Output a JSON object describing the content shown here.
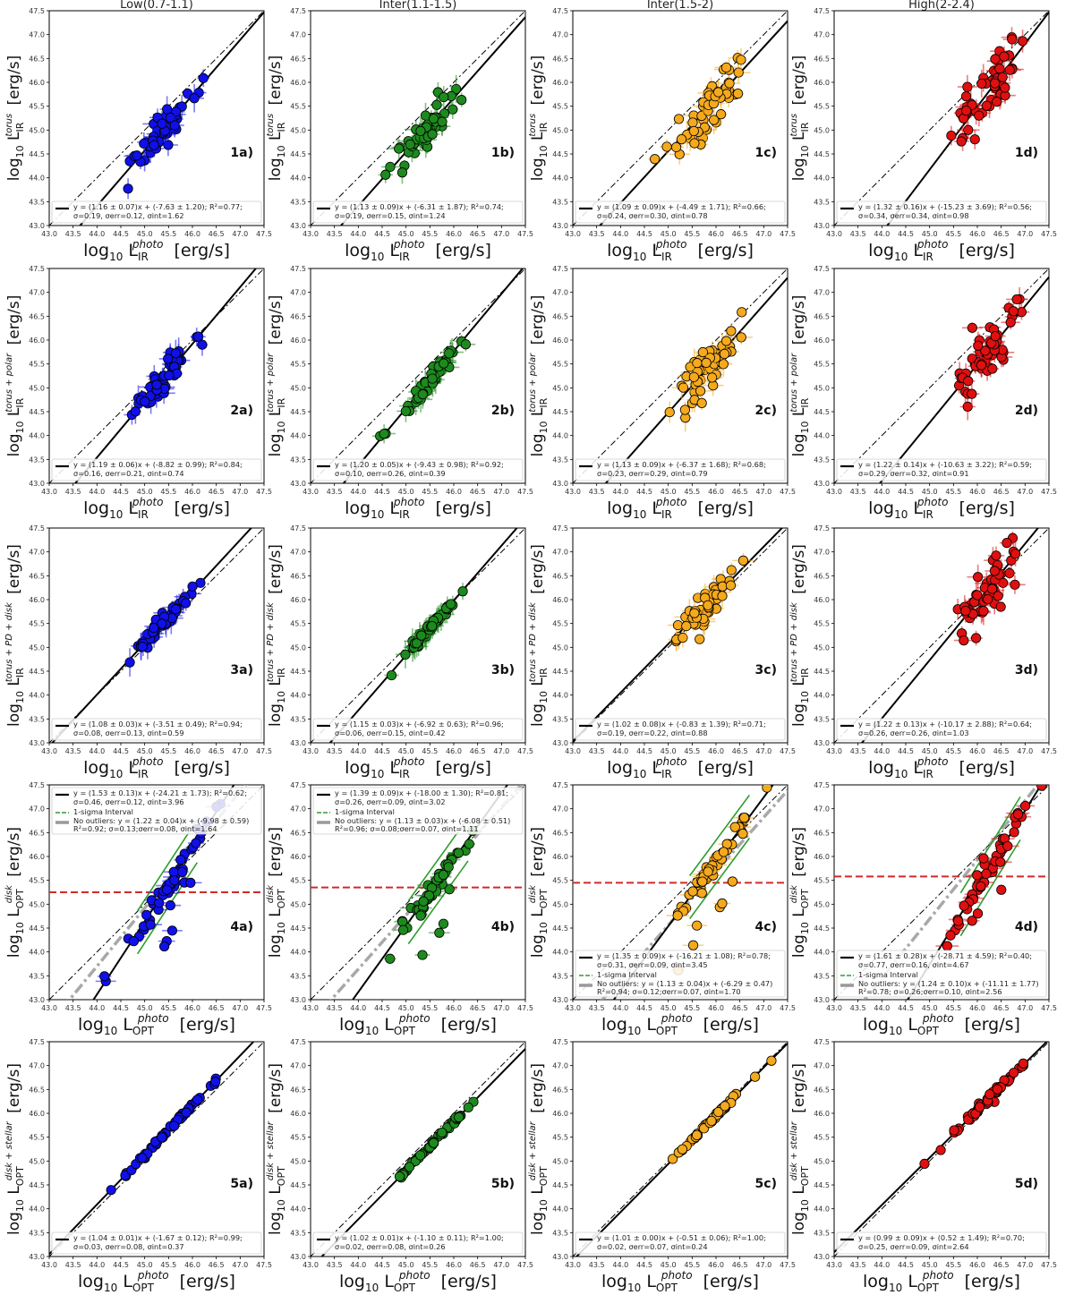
{
  "chart_data": {
    "type": "scatter",
    "axis_range": {
      "xlim": [
        43.0,
        47.5
      ],
      "ylim": [
        43.0,
        47.5
      ]
    },
    "ticks": [
      "43.0",
      "43.5",
      "44.0",
      "44.5",
      "45.0",
      "45.5",
      "46.0",
      "46.5",
      "47.0",
      "47.5"
    ],
    "column_titles": [
      "Low(0.7-1.1)",
      "Inter(1.1-1.5)",
      "Inter(1.5-2)",
      "High(2-2.4)"
    ],
    "column_colors": [
      "#1010e8",
      "#1d8a1d",
      "#f5a91c",
      "#e01010"
    ],
    "rows": [
      {
        "x_label": "log10 L_IR^photo [erg/s]",
        "y_label": "log10 L_IR^torus [erg/s]",
        "x_main": "L",
        "x_sub": "IR",
        "x_sup": "photo",
        "y_main": "L",
        "y_sub": "IR",
        "y_sup": "torus",
        "panels": [
          {
            "label": "1a)",
            "fit": {
              "slope": 1.16,
              "intercept": -7.63
            },
            "fit_line": "y = (1.16 ± 0.07)x + (-7.63 ± 1.20); R²=0.77;",
            "stats_line": "σ=0.19, σerr=0.12, σint=1.62",
            "cx": 45.35,
            "cy": 45.0,
            "sx": 0.35,
            "scatter": 0.18
          },
          {
            "label": "1b)",
            "fit": {
              "slope": 1.13,
              "intercept": -6.31
            },
            "fit_line": "y = (1.13 ± 0.09)x + (-6.31 ± 1.87); R²=0.74;",
            "stats_line": "σ=0.19, σerr=0.15, σint=1.24",
            "cx": 45.5,
            "cy": 45.2,
            "sx": 0.3,
            "scatter": 0.18
          },
          {
            "label": "1c)",
            "fit": {
              "slope": 1.09,
              "intercept": -4.49
            },
            "fit_line": "y = (1.09 ± 0.09)x + (-4.49 ± 1.71); R²=0.66;",
            "stats_line": "σ=0.24, σerr=0.30, σint=0.78",
            "cx": 45.8,
            "cy": 45.5,
            "sx": 0.35,
            "scatter": 0.26
          },
          {
            "label": "1d)",
            "fit": {
              "slope": 1.32,
              "intercept": -15.23
            },
            "fit_line": "y = (1.32 ± 0.16)x + (-15.23 ± 3.69); R²=0.56;",
            "stats_line": "σ=0.34, σerr=0.34, σint=0.98",
            "cx": 46.2,
            "cy": 45.8,
            "sx": 0.35,
            "scatter": 0.32
          }
        ]
      },
      {
        "x_label": "log10 L_IR^photo [erg/s]",
        "y_label": "log10 L_IR^torus+polar [erg/s]",
        "x_main": "L",
        "x_sub": "IR",
        "x_sup": "photo",
        "y_main": "L",
        "y_sub": "IR",
        "y_sup": "torus + polar",
        "panels": [
          {
            "label": "2a)",
            "fit": {
              "slope": 1.19,
              "intercept": -8.82
            },
            "fit_line": "y = (1.19 ± 0.06)x + (-8.82 ± 0.99); R²=0.84;",
            "stats_line": "σ=0.16, σerr=0.21, σint=0.74",
            "cx": 45.35,
            "cy": 45.15,
            "sx": 0.35,
            "scatter": 0.15
          },
          {
            "label": "2b)",
            "fit": {
              "slope": 1.2,
              "intercept": -9.43
            },
            "fit_line": "y = (1.20 ± 0.05)x + (-9.43 ± 0.98); R²=0.92;",
            "stats_line": "σ=0.10, σerr=0.26, σint=0.39",
            "cx": 45.5,
            "cy": 45.3,
            "sx": 0.3,
            "scatter": 0.1
          },
          {
            "label": "2c)",
            "fit": {
              "slope": 1.13,
              "intercept": -6.37
            },
            "fit_line": "y = (1.13 ± 0.09)x + (-6.37 ± 1.68); R²=0.68;",
            "stats_line": "σ=0.23, σerr=0.29, σint=0.79",
            "cx": 45.8,
            "cy": 45.6,
            "sx": 0.35,
            "scatter": 0.24
          },
          {
            "label": "2d)",
            "fit": {
              "slope": 1.22,
              "intercept": -10.63
            },
            "fit_line": "y = (1.22 ± 0.14)x + (-10.63 ± 3.22); R²=0.59;",
            "stats_line": "σ=0.29, σerr=0.32, σint=0.91",
            "cx": 46.2,
            "cy": 45.9,
            "sx": 0.35,
            "scatter": 0.28
          }
        ]
      },
      {
        "x_label": "log10 L_IR^photo [erg/s]",
        "y_label": "log10 L_IR^torus+PD+disk [erg/s]",
        "x_main": "L",
        "x_sub": "IR",
        "x_sup": "photo",
        "y_main": "L",
        "y_sub": "IR",
        "y_sup": "torus + PD + disk",
        "panels": [
          {
            "label": "3a)",
            "fit": {
              "slope": 1.08,
              "intercept": -3.51
            },
            "fit_line": "y = (1.08 ± 0.03)x + (-3.51 ± 0.49); R²=0.94;",
            "stats_line": "σ=0.08, σerr=0.13, σint=0.59",
            "cx": 45.35,
            "cy": 45.3,
            "sx": 0.35,
            "scatter": 0.08
          },
          {
            "label": "3b)",
            "fit": {
              "slope": 1.15,
              "intercept": -6.92
            },
            "fit_line": "y = (1.15 ± 0.03)x + (-6.92 ± 0.63); R²=0.96;",
            "stats_line": "σ=0.06, σerr=0.15, σint=0.42",
            "cx": 45.5,
            "cy": 45.4,
            "sx": 0.3,
            "scatter": 0.06
          },
          {
            "label": "3c)",
            "fit": {
              "slope": 1.02,
              "intercept": -0.83
            },
            "fit_line": "y = (1.02 ± 0.08)x + (-0.83 ± 1.39); R²=0.71;",
            "stats_line": "σ=0.19, σerr=0.22, σint=0.88",
            "cx": 45.8,
            "cy": 45.7,
            "sx": 0.35,
            "scatter": 0.2
          },
          {
            "label": "3d)",
            "fit": {
              "slope": 1.22,
              "intercept": -10.17
            },
            "fit_line": "y = (1.22 ± 0.13)x + (-10.17 ± 2.88); R²=0.64;",
            "stats_line": "σ=0.26, σerr=0.26, σint=1.03",
            "cx": 46.2,
            "cy": 46.0,
            "sx": 0.35,
            "scatter": 0.25
          }
        ]
      },
      {
        "x_label": "log10 L_OPT^photo [erg/s]",
        "y_label": "log10 L_OPT^disk [erg/s]",
        "x_main": "L",
        "x_sub": "OPT",
        "x_sup": "photo",
        "y_main": "L",
        "y_sub": "OPT",
        "y_sup": "disk",
        "panels": [
          {
            "label": "4a)",
            "fit": {
              "slope": 1.53,
              "intercept": -24.21
            },
            "fit_line": "y = (1.53 ± 0.13)x + (-24.21 ± 1.73); R²=0.62;",
            "stats_line": "σ=0.46, σerr=0.12, σint=3.96",
            "interval_label": "1-sigma Interval",
            "nooutlier_fit": {
              "slope": 1.22,
              "intercept": -9.98
            },
            "nooutlier_line": "No outliers: y = (1.22 ± 0.04)x + (-9.98 ± 0.59)",
            "nooutlier_stats": "R²=0.92; σ=0.13;σerr=0.08, σint=1.64",
            "threshold": 45.25,
            "legend_pos": "top",
            "cx": 45.4,
            "cy": 45.3,
            "sx": 0.45,
            "scatter": 0.12
          },
          {
            "label": "4b)",
            "fit": {
              "slope": 1.39,
              "intercept": -18.0
            },
            "fit_line": "y = (1.39 ± 0.09)x + (-18.00 ± 1.30); R²=0.81;",
            "stats_line": "σ=0.26, σerr=0.09, σint=3.02",
            "interval_label": "1-sigma Interval",
            "nooutlier_fit": {
              "slope": 1.13,
              "intercept": -6.08
            },
            "nooutlier_line": "No outliers: y = (1.13 ± 0.03)x + (-6.08 ± 0.51)",
            "nooutlier_stats": "R²=0.96; σ=0.08;σerr=0.07, σint=1.11",
            "threshold": 45.35,
            "legend_pos": "top",
            "cx": 45.6,
            "cy": 45.5,
            "sx": 0.35,
            "scatter": 0.1
          },
          {
            "label": "4c)",
            "fit": {
              "slope": 1.35,
              "intercept": -16.21
            },
            "fit_line": "y = (1.35 ± 0.09)x + (-16.21 ± 1.08); R²=0.78;",
            "stats_line": "σ=0.31, σerr=0.09, σint=3.45",
            "interval_label": "1-sigma Interval",
            "nooutlier_fit": {
              "slope": 1.13,
              "intercept": -6.29
            },
            "nooutlier_line": "No outliers: y = (1.13 ± 0.04)x + (-6.29 ± 0.47)",
            "nooutlier_stats": "R²=0.94; σ=0.12;σerr=0.07, σint=1.70",
            "threshold": 45.45,
            "legend_pos": "bottom",
            "cx": 46.0,
            "cy": 46.1,
            "sx": 0.4,
            "scatter": 0.1
          },
          {
            "label": "4d)",
            "fit": {
              "slope": 1.61,
              "intercept": -28.71
            },
            "fit_line": "y = (1.61 ± 0.28)x + (-28.71 ± 4.59); R²=0.40;",
            "stats_line": "σ=0.77, σerr=0.16, σint=4.67",
            "interval_label": "1-sigma Interval",
            "nooutlier_fit": {
              "slope": 1.24,
              "intercept": -11.11
            },
            "nooutlier_line": "No outliers: y = (1.24 ± 0.10)x + (-11.11 ± 1.77)",
            "nooutlier_stats": "R²=0.78; σ=0.26;σerr=0.10, σint=2.56",
            "threshold": 45.58,
            "legend_pos": "bottom",
            "cx": 46.2,
            "cy": 46.0,
            "sx": 0.4,
            "scatter": 0.12
          }
        ]
      },
      {
        "x_label": "log10 L_OPT^photo [erg/s]",
        "y_label": "log10 L_OPT^disk+stellar [erg/s]",
        "x_main": "L",
        "x_sub": "OPT",
        "x_sup": "photo",
        "y_main": "L",
        "y_sub": "OPT",
        "y_sup": "disk + stellar",
        "panels": [
          {
            "label": "5a)",
            "fit": {
              "slope": 1.04,
              "intercept": -1.67
            },
            "fit_line": "y = (1.04 ± 0.01)x + (-1.67 ± 0.12); R²=0.99;",
            "stats_line": "σ=0.03, σerr=0.08, σint=0.37",
            "cx": 45.4,
            "cy": 45.5,
            "sx": 0.45,
            "scatter": 0.03
          },
          {
            "label": "5b)",
            "fit": {
              "slope": 1.02,
              "intercept": -1.1
            },
            "fit_line": "y = (1.02 ± 0.01)x + (-1.10 ± 0.11); R²=1.00;",
            "stats_line": "σ=0.02, σerr=0.08, σint=0.26",
            "cx": 45.6,
            "cy": 45.6,
            "sx": 0.4,
            "scatter": 0.02
          },
          {
            "label": "5c)",
            "fit": {
              "slope": 1.01,
              "intercept": -0.51
            },
            "fit_line": "y = (1.01 ± 0.00)x + (-0.51 ± 0.06); R²=1.00;",
            "stats_line": "σ=0.02, σerr=0.07, σint=0.24",
            "cx": 45.9,
            "cy": 45.9,
            "sx": 0.45,
            "scatter": 0.02
          },
          {
            "label": "5d)",
            "fit": {
              "slope": 0.99,
              "intercept": 0.52
            },
            "fit_line": "y = (0.99 ± 0.09)x + (0.52 ± 1.49); R²=0.70;",
            "stats_line": "σ=0.25, σerr=0.09, σint=2.64",
            "cx": 46.2,
            "cy": 46.2,
            "sx": 0.4,
            "scatter": 0.05
          }
        ]
      }
    ]
  }
}
